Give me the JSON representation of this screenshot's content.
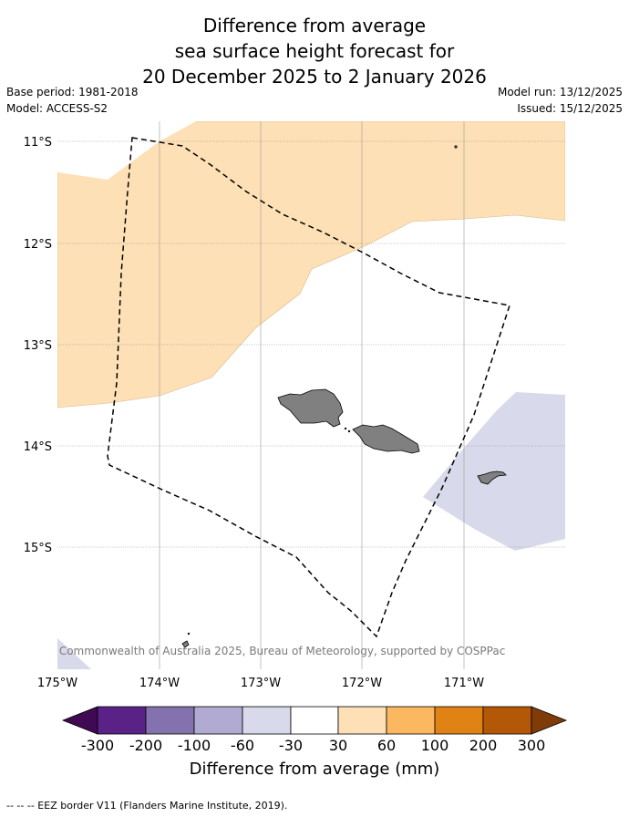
{
  "title": {
    "line1": "Difference from average",
    "line2": "sea surface height forecast for",
    "line3": "20 December 2025 to 2 January 2026"
  },
  "meta": {
    "base_period": "Base period: 1981-2018",
    "model": "Model: ACCESS-S2",
    "model_run": "Model run: 13/12/2025",
    "issued": "Issued: 15/12/2025"
  },
  "map": {
    "latitude_labels": [
      "11°S",
      "12°S",
      "13°S",
      "14°S",
      "15°S"
    ],
    "longitude_labels": [
      "175°W",
      "174°W",
      "173°W",
      "172°W",
      "171°W"
    ],
    "copyright": "© Commonwealth of Australia 2025, Bureau of Meteorology, supported by COSPPac",
    "colors": {
      "positive_30_60": "#fde0b5",
      "negative_60_30": "#d8d9ea",
      "land": "#808080",
      "grid": "#b0b0b0"
    }
  },
  "colorbar": {
    "label": "Difference from average (mm)",
    "ticks": [
      "-300",
      "-200",
      "-100",
      "-60",
      "-30",
      "30",
      "60",
      "100",
      "200",
      "300"
    ],
    "colors": [
      "#3f0a53",
      "#5a2287",
      "#8372ad",
      "#b1aad1",
      "#d8d9ea",
      "#ffffff",
      "#fde0b5",
      "#fbb860",
      "#e08214",
      "#b35806",
      "#7f3b08"
    ]
  },
  "footnote": "--  --  -- EEZ border V11 (Flanders Marine Institute, 2019)."
}
